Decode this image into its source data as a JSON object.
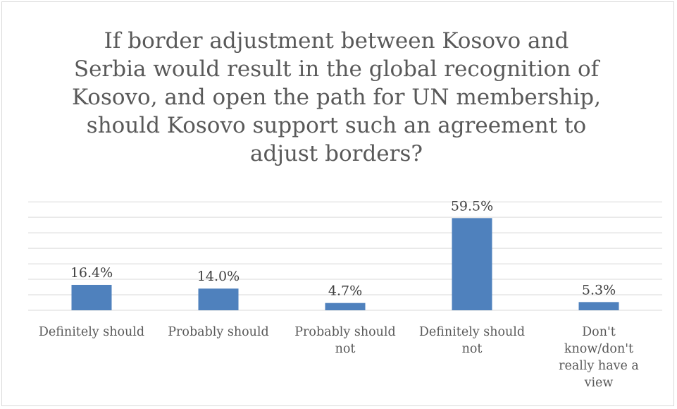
{
  "chart_data": {
    "type": "bar",
    "title": "If border adjustment between Kosovo and Serbia would result in the global recognition of Kosovo, and open the path for UN membership, should Kosovo support such an agreement to adjust borders?",
    "title_lines": [
      "If border adjustment between Kosovo and",
      "Serbia would result in the global recognition of",
      "Kosovo, and open the path for UN membership,",
      "should Kosovo support such an agreement to",
      "adjust borders?"
    ],
    "categories": [
      "Definitely should",
      "Probably should",
      "Probably should not",
      "Definitely should not",
      "Don't know/don't really have a view"
    ],
    "category_lines": [
      [
        "Definitely should"
      ],
      [
        "Probably should"
      ],
      [
        "Probably should",
        "not"
      ],
      [
        "Definitely should",
        "not"
      ],
      [
        "Don't",
        "know/don't",
        "really have a",
        "view"
      ]
    ],
    "values": [
      16.4,
      14.0,
      4.7,
      59.5,
      5.3
    ],
    "data_labels": [
      "16.4%",
      "14.0%",
      "4.7%",
      "59.5%",
      "5.3%"
    ],
    "ylim": [
      0,
      70
    ],
    "grid": true,
    "legend": "none",
    "colors": {
      "bar": "#4f81bd",
      "grid": "#d9d9d9",
      "text": "#595959"
    }
  }
}
